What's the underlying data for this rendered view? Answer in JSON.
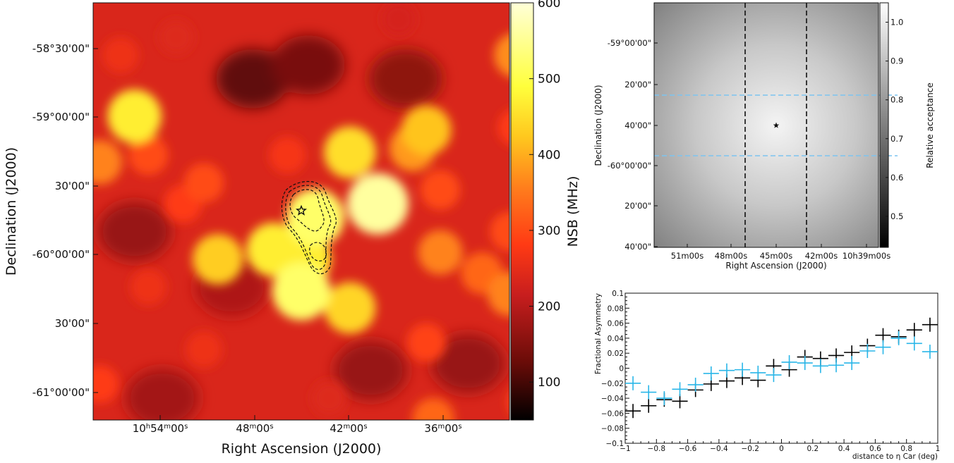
{
  "chart_data": [
    {
      "type": "heatmap",
      "xlabel": "Right Ascension (J2000)",
      "ylabel": "Declination (J2000)",
      "x_tick_labels": [
        {
          "h": "10",
          "m": "54",
          "s": "00"
        },
        {
          "h": "",
          "m": "48",
          "s": "00"
        },
        {
          "h": "",
          "m": "42",
          "s": "00"
        },
        {
          "h": "",
          "m": "36",
          "s": "00"
        }
      ],
      "y_tick_labels": [
        "-58°30'00\"",
        "-59°00'00\"",
        "30'00\"",
        "-60°00'00\"",
        "30'00\"",
        "-61°00'00\""
      ],
      "colorbar": {
        "label": "NSB (MHz)",
        "range": [
          50,
          600
        ],
        "tick_labels": [
          "600",
          "500",
          "400",
          "300",
          "200",
          "100"
        ],
        "tick_values": [
          600,
          500,
          400,
          300,
          200,
          100
        ],
        "colors": [
          "#000000",
          "#6b0c08",
          "#c81e1e",
          "#ff3a14",
          "#ff7a1c",
          "#ffc81e",
          "#ffff3c",
          "#ffffd8"
        ]
      },
      "blobs": [
        {
          "ra": -1.2,
          "dec": 0.68,
          "nsb": 470
        },
        {
          "ra": 1.55,
          "dec": 1.12,
          "nsb": 370
        },
        {
          "ra": 2.0,
          "dec": 1.48,
          "nsb": 300
        },
        {
          "ra": -1.73,
          "dec": 0.9,
          "nsb": 330
        },
        {
          "ra": -1.45,
          "dec": 0.35,
          "nsb": 360
        },
        {
          "ra": -1.62,
          "dec": 0.38,
          "nsb": 290
        },
        {
          "ra": -1.1,
          "dec": 0.4,
          "nsb": 300
        },
        {
          "ra": 0.35,
          "dec": 0.42,
          "nsb": 450
        },
        {
          "ra": 0.9,
          "dec": 0.58,
          "nsb": 420
        },
        {
          "ra": 0.8,
          "dec": 0.45,
          "nsb": 380
        },
        {
          "ra": 0.55,
          "dec": 0.05,
          "nsb": 560
        },
        {
          "ra": 0.1,
          "dec": -0.05,
          "nsb": 520
        },
        {
          "ra": -0.2,
          "dec": -0.28,
          "nsb": 470
        },
        {
          "ra": -0.6,
          "dec": -0.35,
          "nsb": 430
        },
        {
          "ra": 0.02,
          "dec": -0.35,
          "nsb": 470
        },
        {
          "ra": 0.0,
          "dec": -0.58,
          "nsb": 520
        },
        {
          "ra": 0.35,
          "dec": -0.7,
          "nsb": 440
        },
        {
          "ra": 1.0,
          "dec": -0.3,
          "nsb": 360
        },
        {
          "ra": 1.3,
          "dec": -0.45,
          "nsb": 330
        },
        {
          "ra": 1.0,
          "dec": 0.15,
          "nsb": 300
        },
        {
          "ra": -0.85,
          "dec": 0.05,
          "nsb": 280
        },
        {
          "ra": -0.7,
          "dec": 0.2,
          "nsb": 300
        },
        {
          "ra": -0.1,
          "dec": 0.4,
          "nsb": 270
        },
        {
          "ra": 1.55,
          "dec": 0.6,
          "nsb": 280
        },
        {
          "ra": 1.5,
          "dec": -0.15,
          "nsb": 300
        },
        {
          "ra": 1.5,
          "dec": -0.6,
          "nsb": 360
        },
        {
          "ra": 1.85,
          "dec": -0.78,
          "nsb": 330
        },
        {
          "ra": 0.9,
          "dec": -0.95,
          "nsb": 290
        },
        {
          "ra": -0.7,
          "dec": -1.0,
          "nsb": 260
        },
        {
          "ra": -1.85,
          "dec": -1.0,
          "nsb": 300
        },
        {
          "ra": -1.45,
          "dec": -1.25,
          "nsb": 280
        },
        {
          "ra": 0.2,
          "dec": -1.35,
          "nsb": 240
        },
        {
          "ra": 0.95,
          "dec": -1.5,
          "nsb": 330
        },
        {
          "ra": 1.62,
          "dec": -1.38,
          "nsb": 290
        },
        {
          "ra": -1.3,
          "dec": 1.12,
          "nsb": 260
        },
        {
          "ra": -0.9,
          "dec": 1.25,
          "nsb": 240
        },
        {
          "ra": 0.7,
          "dec": 1.38,
          "nsb": 230
        },
        {
          "ra": -1.1,
          "dec": -0.55,
          "nsb": 260
        },
        {
          "ra": -1.85,
          "dec": -0.3,
          "nsb": 260
        }
      ],
      "valleys": [
        {
          "ra": -0.35,
          "dec": 0.95,
          "nsb": 120
        },
        {
          "ra": 0.05,
          "dec": 1.05,
          "nsb": 140
        },
        {
          "ra": 0.75,
          "dec": 0.95,
          "nsb": 160
        },
        {
          "ra": -1.2,
          "dec": -0.15,
          "nsb": 170
        },
        {
          "ra": -0.5,
          "dec": -0.55,
          "nsb": 190
        },
        {
          "ra": 0.5,
          "dec": -1.15,
          "nsb": 170
        },
        {
          "ra": 1.2,
          "dec": -1.1,
          "nsb": 170
        },
        {
          "ra": -1.0,
          "dec": -1.35,
          "nsb": 180
        },
        {
          "ra": 1.9,
          "dec": 0.2,
          "nsb": 180
        }
      ],
      "marker": {
        "symbol": "star",
        "ra": 0.0,
        "dec": 0.0
      }
    },
    {
      "type": "heatmap",
      "xlabel": "Right Ascension (J2000)",
      "ylabel": "Declination (J2000)",
      "x_tick_labels": [
        "51m00s",
        "48m00s",
        "45m00s",
        "42m00s",
        "10h39m00s"
      ],
      "y_tick_labels": [
        "-59°00'00\"",
        "20'00\"",
        "40'00\"",
        "-60°00'00\"",
        "20'00\"",
        "40'00\""
      ],
      "colorbar": {
        "label": "Relative acceptance",
        "range": [
          0.42,
          1.05
        ],
        "tick_labels": [
          "1.0",
          "0.9",
          "0.8",
          "0.7",
          "0.6",
          "0.5"
        ],
        "tick_values": [
          1.0,
          0.9,
          0.8,
          0.7,
          0.6,
          0.5
        ]
      },
      "marker": {
        "symbol": "star"
      }
    },
    {
      "type": "scatter",
      "xlabel": "distance to η Car (deg)",
      "ylabel": "Fractional Asymmetry",
      "xlim": [
        -1,
        1
      ],
      "ylim": [
        -0.1,
        0.1
      ],
      "x_tick_labels": [
        "−1",
        "−0.8",
        "−0.6",
        "−0.4",
        "−0.2",
        "0",
        "0.2",
        "0.4",
        "0.6",
        "0.8",
        "1"
      ],
      "y_tick_labels": [
        "0.1",
        "0.08",
        "0.06",
        "0.04",
        "0.02",
        "0",
        "−0.02",
        "−0.04",
        "−0.06",
        "−0.08",
        "−0.1"
      ],
      "x_bin_half_width": 0.05,
      "series": [
        {
          "color": "#000000",
          "x": [
            -0.95,
            -0.85,
            -0.75,
            -0.65,
            -0.55,
            -0.45,
            -0.35,
            -0.25,
            -0.15,
            -0.05,
            0.05,
            0.15,
            0.25,
            0.35,
            0.45,
            0.55,
            0.65,
            0.75,
            0.85,
            0.95
          ],
          "y": [
            -0.057,
            -0.05,
            -0.042,
            -0.044,
            -0.029,
            -0.021,
            -0.017,
            -0.013,
            -0.016,
            0.003,
            -0.002,
            0.015,
            0.013,
            0.017,
            0.021,
            0.03,
            0.044,
            0.042,
            0.051,
            0.058
          ]
        },
        {
          "color": "#29b6e8",
          "x": [
            -0.95,
            -0.85,
            -0.75,
            -0.65,
            -0.55,
            -0.45,
            -0.35,
            -0.25,
            -0.15,
            -0.05,
            0.05,
            0.15,
            0.25,
            0.35,
            0.45,
            0.55,
            0.65,
            0.75,
            0.85,
            0.95
          ],
          "y": [
            -0.02,
            -0.032,
            -0.04,
            -0.028,
            -0.022,
            -0.007,
            -0.003,
            -0.002,
            -0.006,
            -0.009,
            0.008,
            0.007,
            0.003,
            0.004,
            0.007,
            0.023,
            0.028,
            0.04,
            0.033,
            0.022
          ]
        }
      ]
    }
  ]
}
